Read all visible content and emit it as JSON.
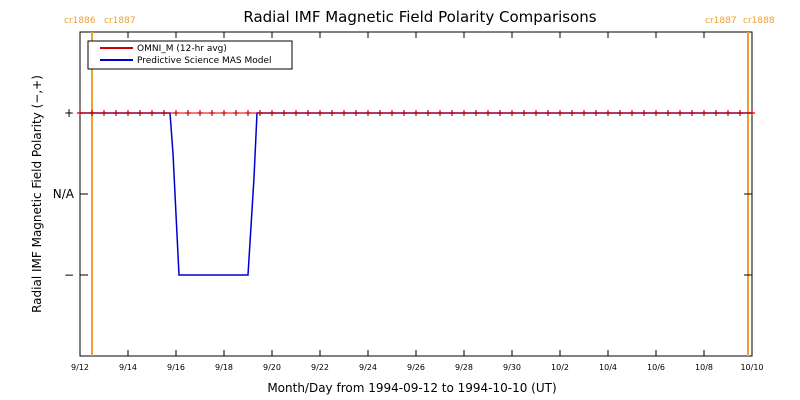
{
  "chart_data": {
    "type": "line",
    "title": "Radial IMF Magnetic Field Polarity Comparisons",
    "xlabel": "Month/Day from 1994-09-12 to 1994-10-10 (UT)",
    "ylabel": "Radial IMF Magnetic Field Polarity (−,+)",
    "x_start": "1994-09-12",
    "x_end": "1994-10-10",
    "xlim": [
      "1994-09-12",
      "1994-10-10"
    ],
    "ylim": [
      -2,
      2
    ],
    "x_ticks": [
      "9/12",
      "9/14",
      "9/16",
      "9/18",
      "9/20",
      "9/22",
      "9/24",
      "9/26",
      "9/28",
      "9/30",
      "10/2",
      "10/4",
      "10/6",
      "10/8",
      "10/10"
    ],
    "y_ticks": [
      {
        "value": 1,
        "label": "+"
      },
      {
        "value": 0,
        "label": "N/A"
      },
      {
        "value": -1,
        "label": "−"
      }
    ],
    "legend": {
      "placement": "top-left",
      "entries": [
        {
          "name": "OMNI_M (12-hr avg)",
          "color": "#cc0000"
        },
        {
          "name": "Predictive Science MAS Model",
          "color": "#0000cc"
        }
      ]
    },
    "carrington_markers": [
      {
        "x": "1994-09-12 12:00",
        "left_label": "cr1886",
        "right_label": "cr1887",
        "color": "#f0a030"
      },
      {
        "x": "1994-10-09 20:00",
        "left_label": "cr1887",
        "right_label": "cr1888",
        "color": "#f0a030"
      }
    ],
    "series": [
      {
        "name": "OMNI_M (12-hr avg)",
        "color": "#cc0000",
        "marker": "+",
        "x": [
          "1994-09-12 00:00",
          "1994-09-12 12:00",
          "1994-09-13 00:00",
          "1994-09-13 12:00",
          "1994-09-14 00:00",
          "1994-09-14 12:00",
          "1994-09-15 00:00",
          "1994-09-15 12:00",
          "1994-09-16 00:00",
          "1994-09-16 12:00",
          "1994-09-17 00:00",
          "1994-09-17 12:00",
          "1994-09-18 00:00",
          "1994-09-18 12:00",
          "1994-09-19 00:00",
          "1994-09-19 12:00",
          "1994-09-20 00:00",
          "1994-09-20 12:00",
          "1994-09-21 00:00",
          "1994-09-21 12:00",
          "1994-09-22 00:00",
          "1994-09-22 12:00",
          "1994-09-23 00:00",
          "1994-09-23 12:00",
          "1994-09-24 00:00",
          "1994-09-24 12:00",
          "1994-09-25 00:00",
          "1994-09-25 12:00",
          "1994-09-26 00:00",
          "1994-09-26 12:00",
          "1994-09-27 00:00",
          "1994-09-27 12:00",
          "1994-09-28 00:00",
          "1994-09-28 12:00",
          "1994-09-29 00:00",
          "1994-09-29 12:00",
          "1994-09-30 00:00",
          "1994-09-30 12:00",
          "1994-10-01 00:00",
          "1994-10-01 12:00",
          "1994-10-02 00:00",
          "1994-10-02 12:00",
          "1994-10-03 00:00",
          "1994-10-03 12:00",
          "1994-10-04 00:00",
          "1994-10-04 12:00",
          "1994-10-05 00:00",
          "1994-10-05 12:00",
          "1994-10-06 00:00",
          "1994-10-06 12:00",
          "1994-10-07 00:00",
          "1994-10-07 12:00",
          "1994-10-08 00:00",
          "1994-10-08 12:00",
          "1994-10-09 00:00",
          "1994-10-09 12:00",
          "1994-10-10 00:00"
        ],
        "values": [
          1,
          1,
          1,
          1,
          1,
          1,
          1,
          1,
          1,
          1,
          1,
          1,
          1,
          1,
          1,
          1,
          1,
          1,
          1,
          1,
          1,
          1,
          1,
          1,
          1,
          1,
          1,
          1,
          1,
          1,
          1,
          1,
          1,
          1,
          1,
          1,
          1,
          1,
          1,
          1,
          1,
          1,
          1,
          1,
          1,
          1,
          1,
          1,
          1,
          1,
          1,
          1,
          1,
          1,
          1,
          1,
          1
        ]
      },
      {
        "name": "Predictive Science MAS Model",
        "color": "#0000cc",
        "x": [
          "1994-09-12 00:00",
          "1994-09-15 18:00",
          "1994-09-15 21:00",
          "1994-09-16 03:00",
          "1994-09-19 00:00",
          "1994-09-19 06:00",
          "1994-09-19 09:00",
          "1994-10-10 00:00"
        ],
        "values": [
          1,
          1,
          0.5,
          -1,
          -1,
          0.2,
          1,
          1
        ]
      }
    ]
  }
}
